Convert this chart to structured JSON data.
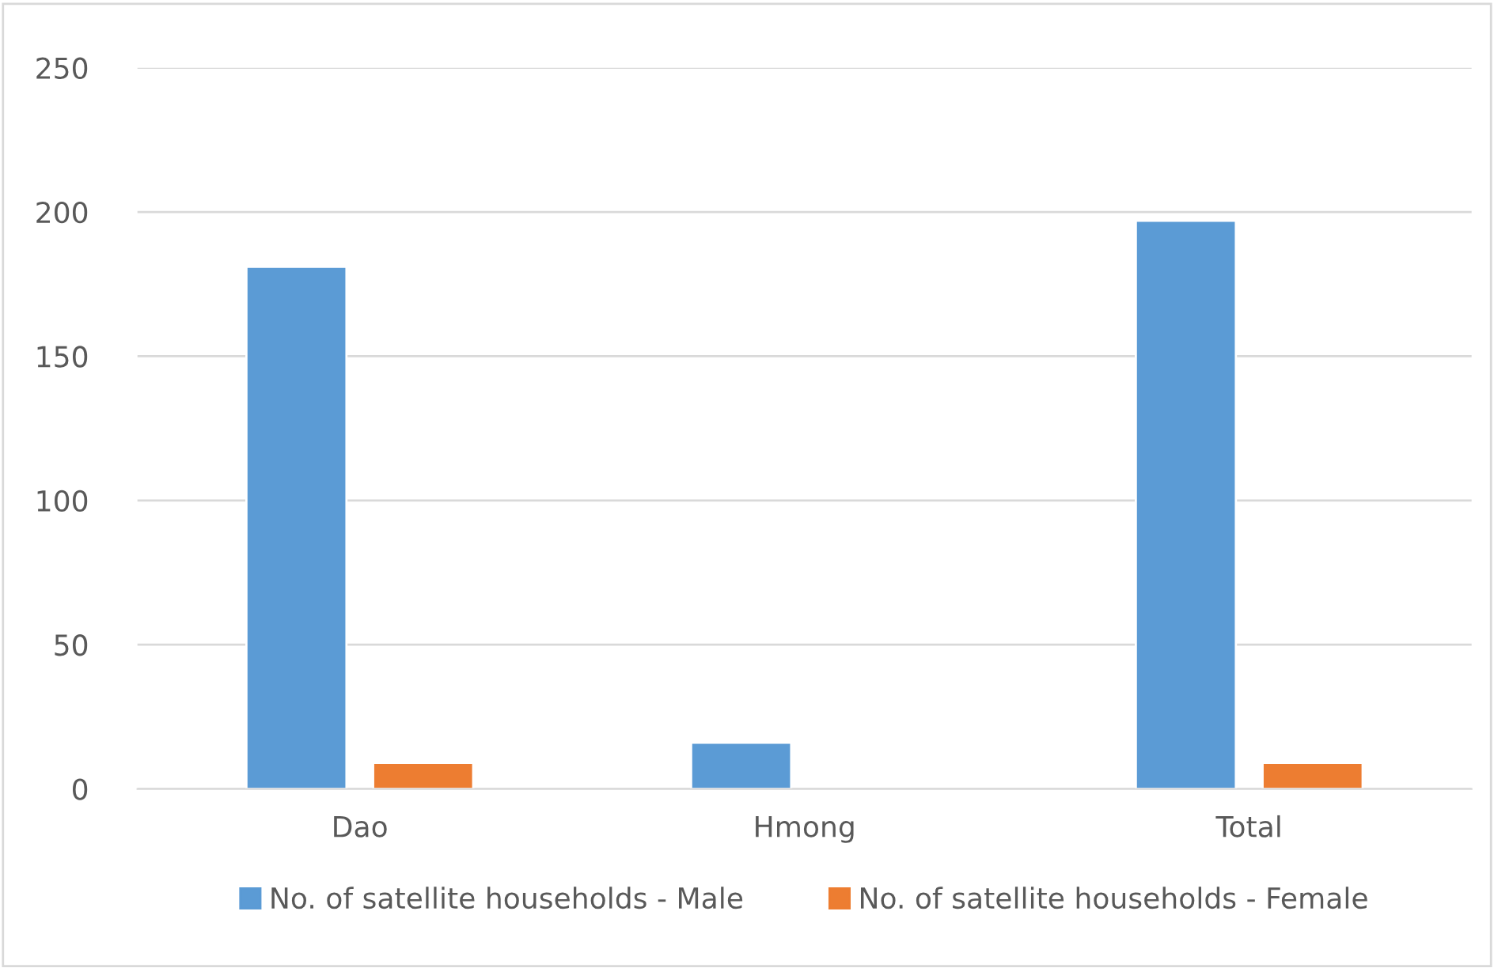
{
  "chart_data": {
    "type": "bar",
    "categories": [
      "Dao",
      "Hmong",
      "Total"
    ],
    "series": [
      {
        "name": "No. of satellite households - Male",
        "color": "#5b9bd5",
        "values": [
          181,
          16,
          197
        ]
      },
      {
        "name": "No. of satellite households - Female",
        "color": "#ed7d31",
        "values": [
          9,
          null,
          9
        ]
      }
    ],
    "ylim": [
      0,
      250
    ],
    "yticks": [
      0,
      50,
      100,
      150,
      200,
      250
    ],
    "grid": "y",
    "legend": "bottom"
  }
}
